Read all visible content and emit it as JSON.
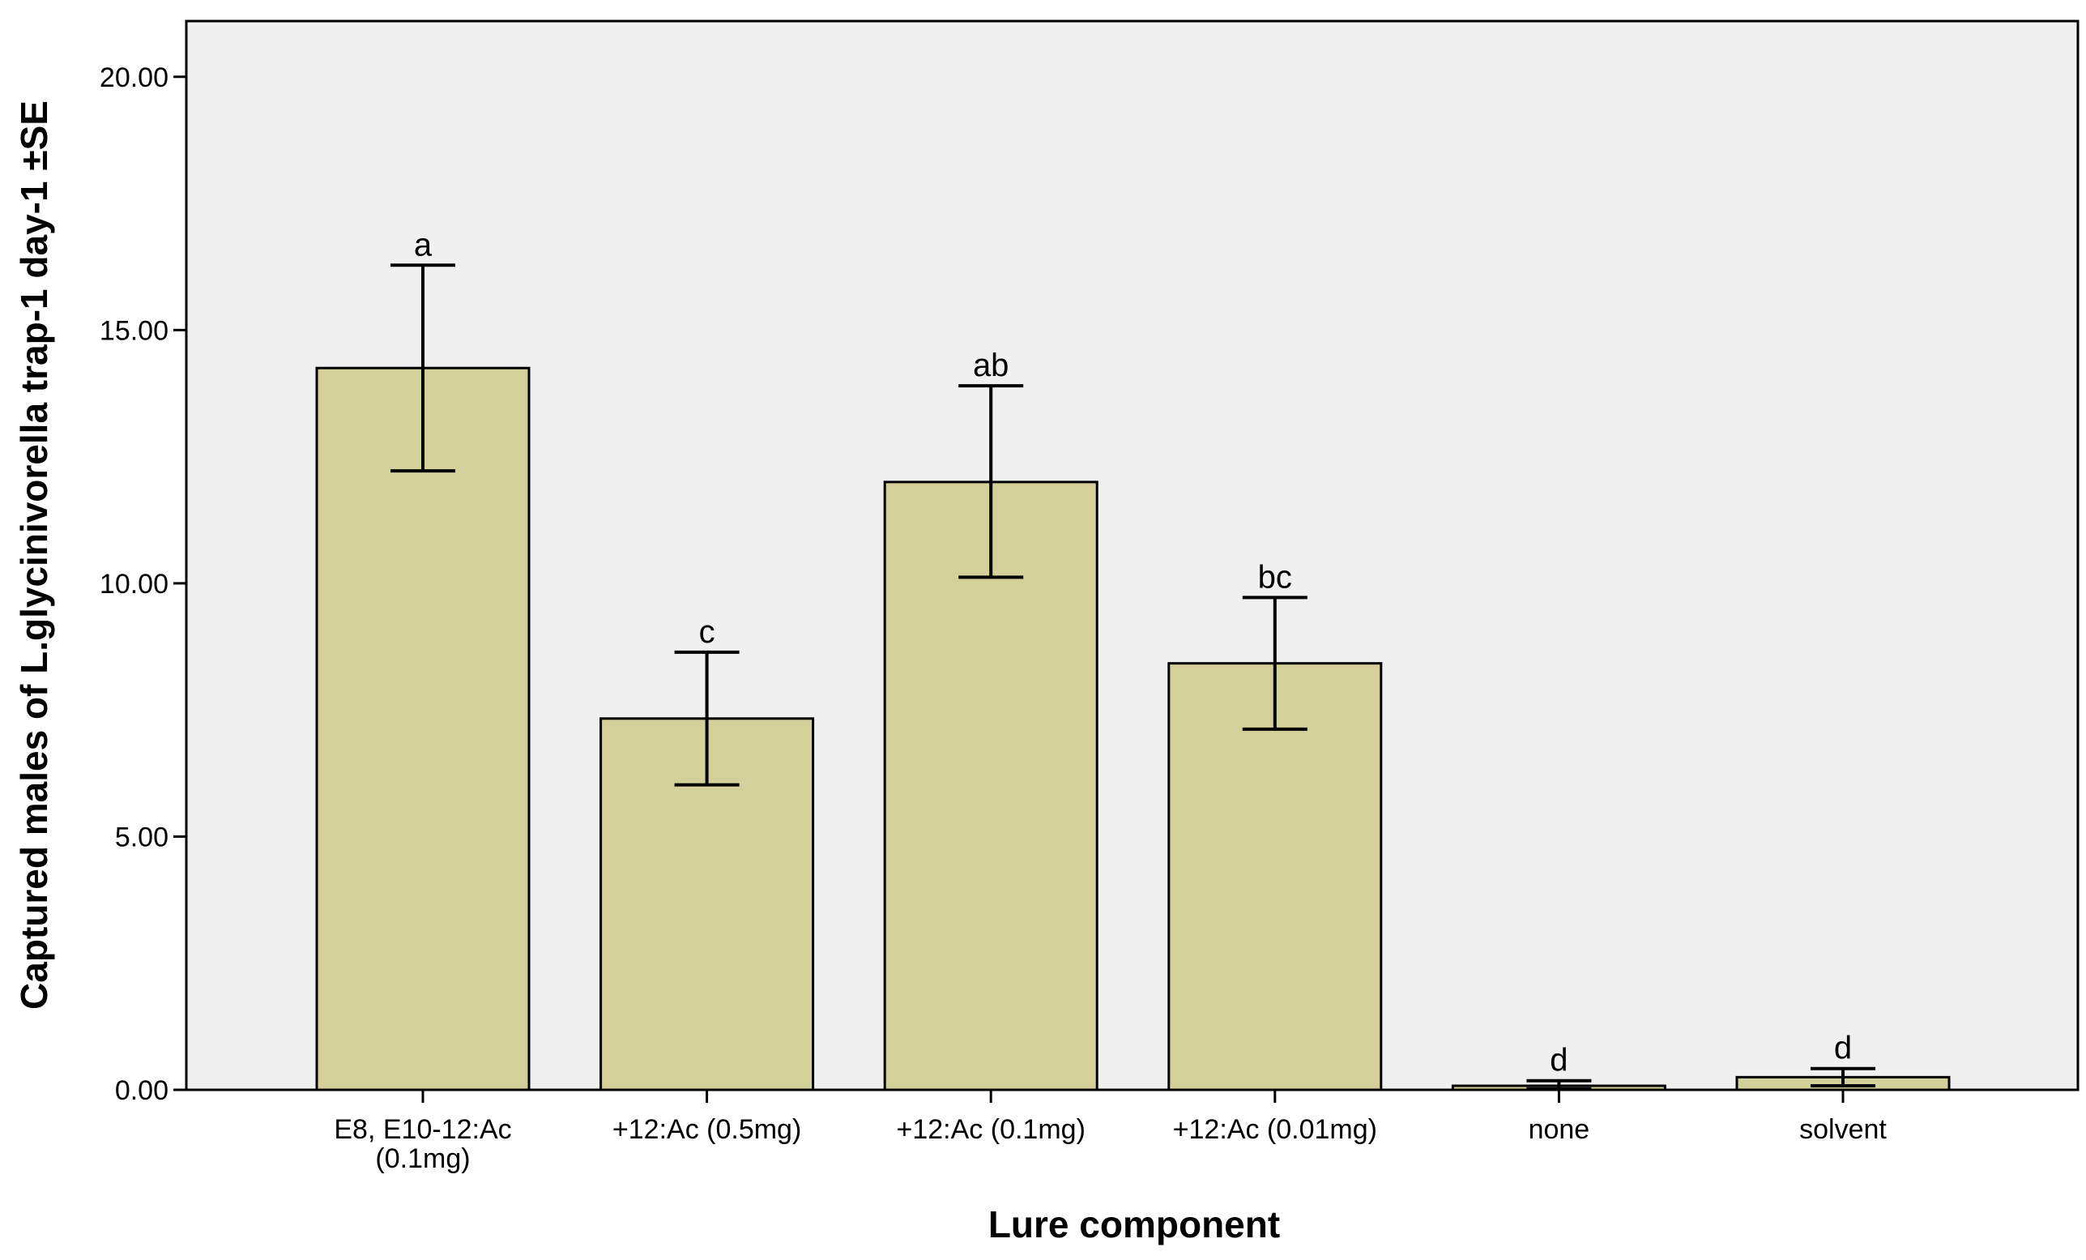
{
  "chart_data": {
    "type": "bar",
    "title": "",
    "xlabel": "Lure component",
    "ylabel": "Captured males of L.glycinivorella trap-1 day-1 ±SE",
    "ylim": [
      0,
      21.1
    ],
    "yticks": [
      0,
      5,
      10,
      15,
      20
    ],
    "ytick_labels": [
      "0.00",
      "5.00",
      "10.00",
      "15.00",
      "20.00"
    ],
    "grid": false,
    "colors": {
      "bar": "#d4d09a",
      "plot_bg": "#f0f0f0",
      "line": "#000000"
    },
    "categories": [
      [
        "E8, E10-12:Ac",
        "(0.1mg)"
      ],
      [
        "+12:Ac (0.5mg)"
      ],
      [
        "+12:Ac (0.1mg)"
      ],
      [
        "+12:Ac (0.01mg)"
      ],
      [
        "none"
      ],
      [
        "solvent"
      ]
    ],
    "values": [
      14.25,
      7.33,
      12.0,
      8.42,
      0.08,
      0.25
    ],
    "error_low": [
      12.22,
      6.02,
      10.12,
      7.12,
      0.02,
      0.08
    ],
    "error_high": [
      16.28,
      8.64,
      13.9,
      9.72,
      0.18,
      0.42
    ],
    "significance_letters": [
      "a",
      "c",
      "ab",
      "bc",
      "d",
      "d"
    ]
  }
}
